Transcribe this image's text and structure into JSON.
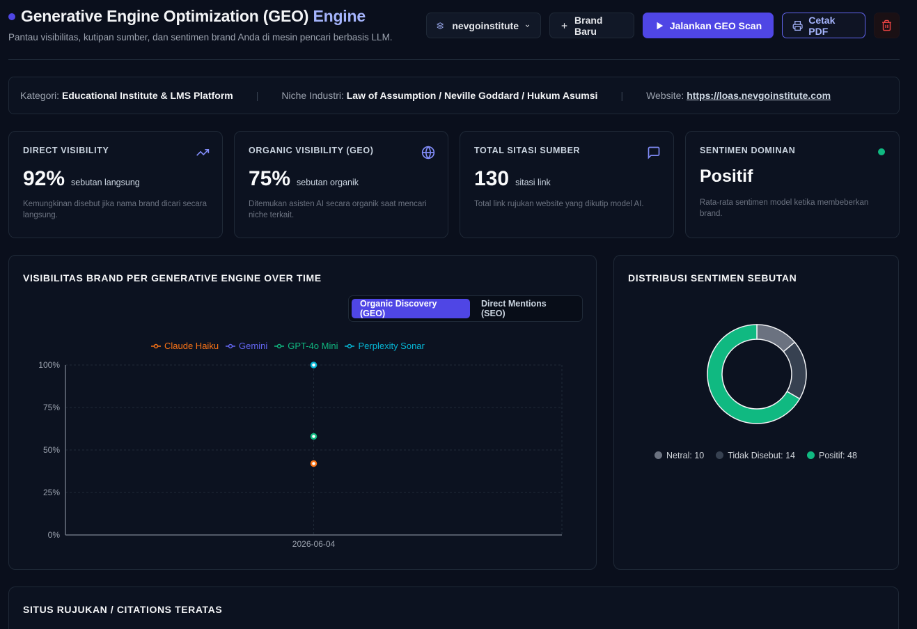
{
  "header": {
    "title_main": "Generative Engine Optimization (GEO)",
    "title_accent": "Engine",
    "subtitle": "Pantau visibilitas, kutipan sumber, dan sentimen brand Anda di mesin pencari berbasis LLM.",
    "brand_select": "nevgoinstitute",
    "new_brand_label": "Brand Baru",
    "run_scan_label": "Jalankan GEO Scan",
    "print_pdf_label": "Cetak PDF"
  },
  "info": {
    "category_label": "Kategori:",
    "category_value": "Educational Institute & LMS Platform",
    "niche_label": "Niche Industri:",
    "niche_value": "Law of Assumption / Neville Goddard / Hukum Asumsi",
    "website_label": "Website:",
    "website_value": "https://loas.nevgoinstitute.com"
  },
  "stats": [
    {
      "label": "DIRECT VISIBILITY",
      "value": "92%",
      "unit": "sebutan langsung",
      "desc": "Kemungkinan disebut jika nama brand dicari secara langsung.",
      "icon": "trending-up-icon"
    },
    {
      "label": "ORGANIC VISIBILITY (GEO)",
      "value": "75%",
      "unit": "sebutan organik",
      "desc": "Ditemukan asisten AI secara organik saat mencari niche terkait.",
      "icon": "globe-icon"
    },
    {
      "label": "TOTAL SITASI SUMBER",
      "value": "130",
      "unit": "sitasi link",
      "desc": "Total link rujukan website yang dikutip model AI.",
      "icon": "message-square-icon"
    },
    {
      "label": "SENTIMEN DOMINAN",
      "value": "Positif",
      "desc": "Rata-rata sentimen model ketika membeberkan brand.",
      "icon": "status-dot-icon"
    }
  ],
  "visibility_panel": {
    "title": "VISIBILITAS BRAND PER GENERATIVE ENGINE OVER TIME",
    "toggle_active": "Organic Discovery (GEO)",
    "toggle_inactive": "Direct Mentions (SEO)"
  },
  "sentiment_panel": {
    "title": "DISTRIBUSI SENTIMEN SEBUTAN"
  },
  "citations_panel": {
    "title": "SITUS RUJUKAN / CITATIONS TERATAS"
  },
  "colors": {
    "accent": "#4f46e5",
    "positive": "#10b981",
    "neutral": "#6b7280",
    "not_mentioned": "#374151"
  },
  "chart_data": [
    {
      "type": "scatter",
      "x": [
        "2026-06-04"
      ],
      "ylim": [
        0,
        100
      ],
      "yticks": [
        "0%",
        "25%",
        "50%",
        "75%",
        "100%"
      ],
      "legend_position": "top",
      "series": [
        {
          "name": "Claude Haiku",
          "color": "#f97316",
          "values": [
            42
          ]
        },
        {
          "name": "Gemini",
          "color": "#6366f1",
          "values": [
            null
          ]
        },
        {
          "name": "GPT-4o Mini",
          "color": "#10b981",
          "values": [
            58
          ]
        },
        {
          "name": "Perplexity Sonar",
          "color": "#06b6d4",
          "values": [
            100
          ]
        }
      ]
    },
    {
      "type": "pie",
      "labels": [
        "Netral",
        "Tidak Disebut",
        "Positif"
      ],
      "values": [
        10,
        14,
        48
      ],
      "colors": [
        "#6b7280",
        "#374151",
        "#10b981"
      ],
      "legend": [
        "Netral: 10",
        "Tidak Disebut: 14",
        "Positif: 48"
      ]
    }
  ]
}
